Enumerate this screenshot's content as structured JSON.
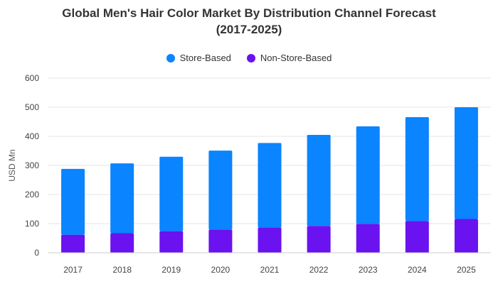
{
  "chart_data": {
    "type": "bar",
    "stacked": true,
    "title_lines": [
      "Global Men's Hair Color Market By Distribution Channel Forecast",
      "(2017-2025)"
    ],
    "xlabel": "",
    "ylabel": "USD Mn",
    "ylim": [
      0,
      600
    ],
    "yticks": [
      0,
      100,
      200,
      300,
      400,
      500,
      600
    ],
    "grid": true,
    "legend_position": "top-center",
    "categories": [
      "2017",
      "2018",
      "2019",
      "2020",
      "2021",
      "2022",
      "2023",
      "2024",
      "2025"
    ],
    "series": [
      {
        "name": "Non-Store-Based",
        "color": "#6a12f0",
        "values": [
          62,
          67,
          74,
          80,
          87,
          92,
          99,
          109,
          116
        ]
      },
      {
        "name": "Store-Based",
        "color": "#0a84ff",
        "values": [
          226,
          240,
          256,
          271,
          290,
          313,
          335,
          357,
          384
        ]
      }
    ]
  }
}
